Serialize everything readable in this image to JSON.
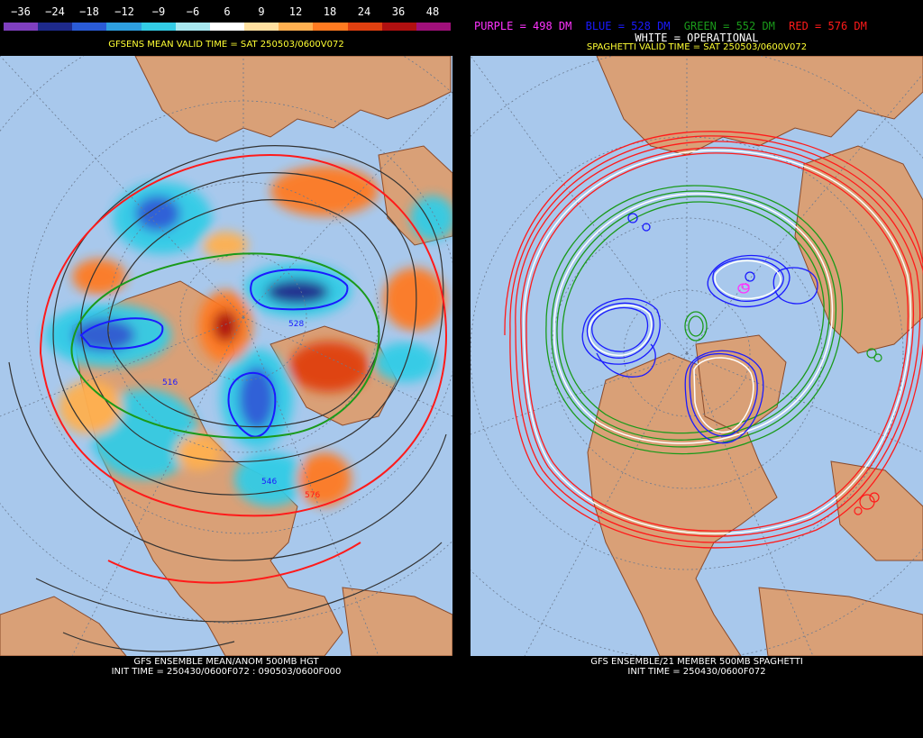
{
  "left": {
    "colorbar": {
      "labels": [
        "−36",
        "−24",
        "−18",
        "−12",
        "−9",
        "−6",
        "6",
        "9",
        "12",
        "18",
        "24",
        "36",
        "48"
      ],
      "colors": [
        "#7f3fbf",
        "#1e2a8c",
        "#2a5bd6",
        "#2e9fe0",
        "#33cce6",
        "#a8e8f0",
        "#ffffff",
        "#ffe0a0",
        "#ffb050",
        "#ff7a20",
        "#e04010",
        "#b01010",
        "#a0107a"
      ]
    },
    "subtitle": "GFSENS MEAN VALID TIME = SAT 250503/0600V072",
    "footer_line1": "GFS ENSEMBLE MEAN/ANOM 500MB HGT",
    "footer_line2": "INIT TIME = 250430/0600F072 : 090503/0600F000",
    "contour_labels": [
      "528",
      "516",
      "546",
      "576"
    ]
  },
  "right": {
    "legend": {
      "purple": "PURPLE = 498 DM",
      "blue": "BLUE = 528 DM",
      "green": "GREEN = 552 DM",
      "red": "RED = 576 DM",
      "white": "WHITE = OPERATIONAL"
    },
    "subtitle": "SPAGHETTI VALID TIME = SAT 250503/0600V072",
    "footer_line1": "GFS ENSEMBLE/21 MEMBER 500MB SPAGHETTI",
    "footer_line2": "INIT TIME = 250430/0600F072"
  },
  "colors": {
    "ocean": "#a8c8ec",
    "land": "#d9a077",
    "border": "#8a4a2a",
    "grid": "#6a7a90",
    "purple": "#ff33ff",
    "blue": "#1a1aff",
    "green": "#1a9a1a",
    "red": "#ff1a1a",
    "white": "#ffffff",
    "contour": "#333333"
  }
}
